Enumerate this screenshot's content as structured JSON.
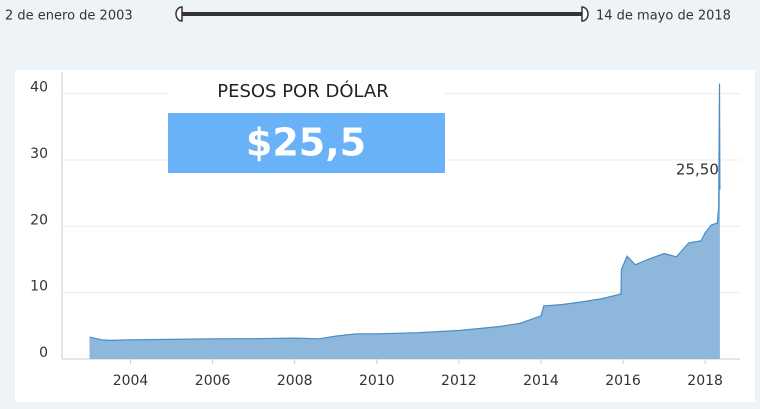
{
  "slider": {
    "start": "2 de enero de 2003",
    "end": "14 de mayo de 2018"
  },
  "kpi": {
    "title": "PESOS POR DÓLAR",
    "value": "$25,5"
  },
  "chart_data": {
    "type": "area",
    "color": "#8db8dc",
    "line_color": "#4a8cc4",
    "grid": true,
    "x": [
      2003.0,
      2003.3,
      2003.5,
      2004.0,
      2005.0,
      2006.0,
      2007.0,
      2008.0,
      2008.6,
      2009.0,
      2009.5,
      2010.0,
      2011.0,
      2012.0,
      2013.0,
      2013.5,
      2014.0,
      2014.07,
      2014.5,
      2015.0,
      2015.5,
      2015.95,
      2015.96,
      2016.1,
      2016.3,
      2016.6,
      2017.0,
      2017.3,
      2017.6,
      2017.9,
      2018.0,
      2018.15,
      2018.3,
      2018.33,
      2018.35,
      2018.36
    ],
    "values": [
      3.3,
      2.9,
      2.8,
      2.9,
      2.95,
      3.05,
      3.06,
      3.15,
      3.05,
      3.45,
      3.8,
      3.8,
      3.97,
      4.3,
      4.9,
      5.4,
      6.5,
      8.0,
      8.2,
      8.6,
      9.1,
      9.8,
      13.5,
      15.5,
      14.2,
      15.0,
      15.9,
      15.4,
      17.5,
      17.8,
      19.0,
      20.2,
      20.5,
      23.0,
      41.5,
      25.5
    ],
    "annotations": [
      {
        "label": "25,50",
        "x": 2018.36,
        "y": 25.5
      }
    ],
    "xlim": [
      2002.33,
      2018.85
    ],
    "xticks": [
      2004,
      2006,
      2008,
      2010,
      2012,
      2014,
      2016,
      2018
    ],
    "ylim": [
      0,
      42.5
    ],
    "yticks": [
      0,
      10,
      20,
      30,
      40
    ]
  }
}
